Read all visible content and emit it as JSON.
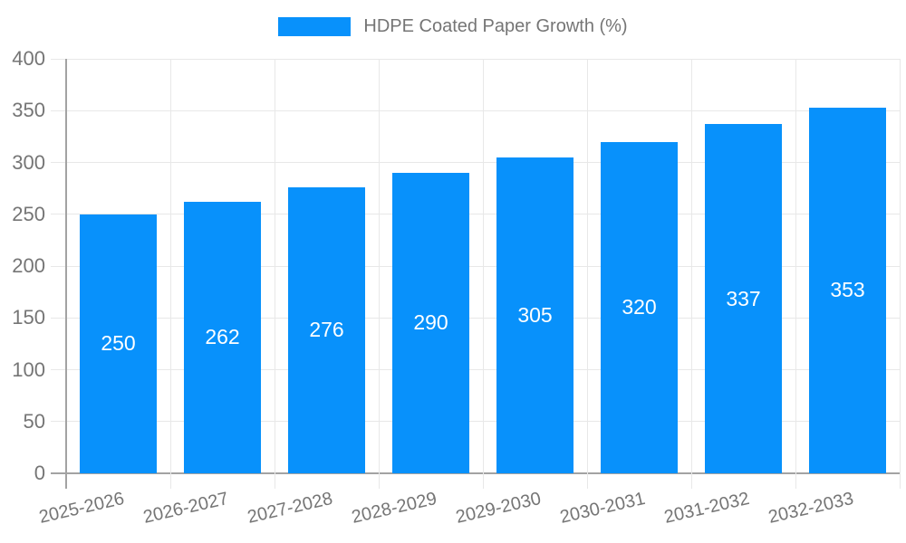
{
  "chart_data": {
    "type": "bar",
    "title": "HDPE Coated Paper Growth (%)",
    "categories": [
      "2025-2026",
      "2026-2027",
      "2027-2028",
      "2028-2029",
      "2029-2030",
      "2030-2031",
      "2031-2032",
      "2032-2033"
    ],
    "values": [
      250,
      262,
      276,
      290,
      305,
      320,
      337,
      353
    ],
    "value_labels": [
      "250",
      "262",
      "276",
      "290",
      "305",
      "320",
      "337",
      "353"
    ],
    "ylim": [
      0,
      400
    ],
    "yticks": [
      0,
      50,
      100,
      150,
      200,
      250,
      300,
      350,
      400
    ],
    "grid": true,
    "legend_position": "top-center",
    "xlabel": "",
    "ylabel": "",
    "colors": {
      "bar": "#0891fb",
      "value_text": "#ffffff",
      "axis_text": "#757575",
      "legend_text": "#757575",
      "gridline": "#e8e8e8",
      "axis_line": "#a3a3a3",
      "background": "#ffffff"
    }
  }
}
